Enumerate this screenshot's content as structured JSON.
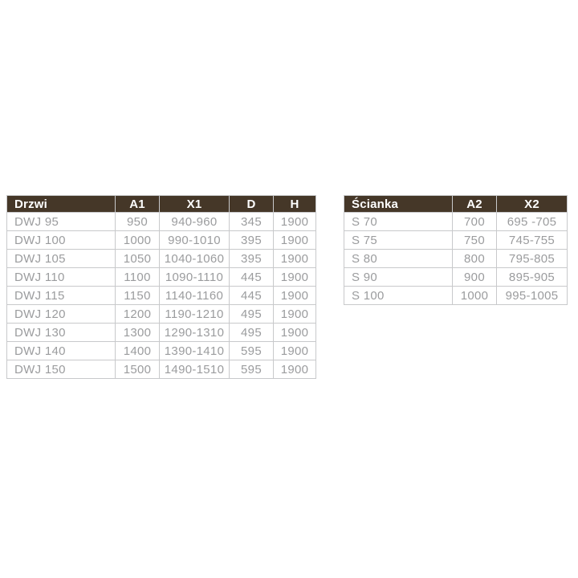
{
  "colors": {
    "header_bg": "#453728",
    "header_text": "#ffffff",
    "cell_text": "#9b9c9e",
    "border": "#c8c9cb",
    "row_bg": "#ffffff",
    "page_bg": "#ffffff"
  },
  "chart_data": [
    {
      "type": "table",
      "title": "Drzwi",
      "columns": [
        "Drzwi",
        "A1",
        "X1",
        "D",
        "H"
      ],
      "rows": [
        [
          "DWJ 95",
          "950",
          "940-960",
          "345",
          "1900"
        ],
        [
          "DWJ 100",
          "1000",
          "990-1010",
          "395",
          "1900"
        ],
        [
          "DWJ 105",
          "1050",
          "1040-1060",
          "395",
          "1900"
        ],
        [
          "DWJ 110",
          "1100",
          "1090-1110",
          "445",
          "1900"
        ],
        [
          "DWJ 115",
          "1150",
          "1140-1160",
          "445",
          "1900"
        ],
        [
          "DWJ 120",
          "1200",
          "1190-1210",
          "495",
          "1900"
        ],
        [
          "DWJ 130",
          "1300",
          "1290-1310",
          "495",
          "1900"
        ],
        [
          "DWJ 140",
          "1400",
          "1390-1410",
          "595",
          "1900"
        ],
        [
          "DWJ 150",
          "1500",
          "1490-1510",
          "595",
          "1900"
        ]
      ]
    },
    {
      "type": "table",
      "title": "Ścianka",
      "columns": [
        "Ścianka",
        "A2",
        "X2"
      ],
      "rows": [
        [
          "S 70",
          "700",
          "695 -705"
        ],
        [
          "S 75",
          "750",
          "745-755"
        ],
        [
          "S 80",
          "800",
          "795-805"
        ],
        [
          "S 90",
          "900",
          "895-905"
        ],
        [
          "S 100",
          "1000",
          "995-1005"
        ]
      ]
    }
  ]
}
